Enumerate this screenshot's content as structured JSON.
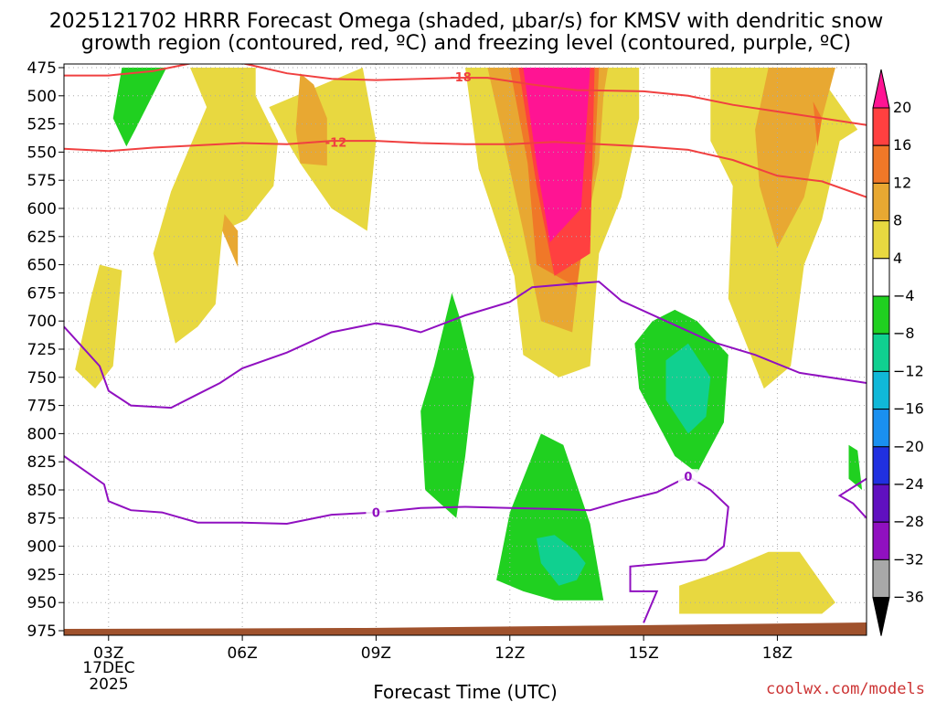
{
  "chart_data": {
    "type": "contour",
    "title_line1": "2025121702 HRRR Forecast Omega (shaded, μbar/s) for KMSV with dendritic snow",
    "title_line2": "growth region (contoured, red, ºC) and freezing level (contoured, purple, ºC)",
    "xlabel": "Forecast Time (UTC)",
    "x_ticks": [
      {
        "hour": 3,
        "label": "03Z"
      },
      {
        "hour": 6,
        "label": "06Z"
      },
      {
        "hour": 9,
        "label": "09Z"
      },
      {
        "hour": 12,
        "label": "12Z"
      },
      {
        "hour": 15,
        "label": "15Z"
      },
      {
        "hour": 18,
        "label": "18Z"
      }
    ],
    "x_range": [
      2,
      20
    ],
    "date_day": "17DEC",
    "date_year": "2025",
    "y_ticks": [
      "475",
      "500",
      "525",
      "550",
      "575",
      "600",
      "625",
      "650",
      "675",
      "700",
      "725",
      "750",
      "775",
      "800",
      "825",
      "850",
      "875",
      "900",
      "925",
      "950",
      "975"
    ],
    "y_range_hpa": [
      475,
      975
    ],
    "colorbar_levels": [
      "20",
      "16",
      "12",
      "8",
      "4",
      "−4",
      "−8",
      "−12",
      "−16",
      "−20",
      "−24",
      "−28",
      "−32",
      "−36"
    ],
    "colorbar_colors": [
      "#ff1493",
      "#ff4040",
      "#f07828",
      "#e8a832",
      "#e8d840",
      "#ffffff",
      "#20d020",
      "#10d090",
      "#10b8d8",
      "#1a90f0",
      "#2030e0",
      "#6010c0",
      "#9010c0",
      "#a8a8a8",
      "#000000"
    ],
    "shaded_regions": [
      {
        "level": "4 to 8",
        "polygons": [
          [
            [
              4.83,
              475
            ],
            [
              5.2,
              510
            ],
            [
              4.4,
              585
            ],
            [
              4.0,
              640
            ],
            [
              4.5,
              720
            ],
            [
              5.0,
              705
            ],
            [
              5.4,
              685
            ],
            [
              5.55,
              620
            ],
            [
              6.1,
              610
            ],
            [
              6.7,
              580
            ],
            [
              6.8,
              540
            ],
            [
              6.3,
              500
            ],
            [
              6.3,
              475
            ]
          ],
          [
            [
              2.25,
              743
            ],
            [
              2.6,
              680
            ],
            [
              2.8,
              650
            ],
            [
              3.3,
              655
            ],
            [
              3.1,
              740
            ],
            [
              2.7,
              760
            ]
          ],
          [
            [
              8.7,
              475
            ],
            [
              9.0,
              540
            ],
            [
              8.8,
              620
            ],
            [
              8.0,
              600
            ],
            [
              7.3,
              560
            ],
            [
              7.0,
              540
            ],
            [
              6.6,
              510
            ]
          ],
          [
            [
              11.0,
              475
            ],
            [
              11.3,
              565
            ],
            [
              12.1,
              660
            ],
            [
              12.3,
              730
            ],
            [
              13.1,
              750
            ],
            [
              13.8,
              740
            ],
            [
              14.0,
              640
            ],
            [
              14.5,
              590
            ],
            [
              14.9,
              520
            ],
            [
              14.9,
              475
            ]
          ],
          [
            [
              16.5,
              475
            ],
            [
              16.5,
              540
            ],
            [
              17.0,
              580
            ],
            [
              16.9,
              680
            ],
            [
              17.7,
              760
            ],
            [
              18.3,
              740
            ],
            [
              18.6,
              650
            ],
            [
              19.0,
              610
            ],
            [
              19.4,
              540
            ],
            [
              19.8,
              530
            ],
            [
              19.0,
              485
            ],
            [
              18.6,
              495
            ],
            [
              18.3,
              475
            ]
          ],
          [
            [
              15.8,
              935
            ],
            [
              16.9,
              920
            ],
            [
              17.8,
              905
            ],
            [
              18.5,
              905
            ],
            [
              19.3,
              950
            ],
            [
              19.0,
              960
            ],
            [
              15.8,
              960
            ]
          ]
        ]
      },
      {
        "level": "8 to 12",
        "polygons": [
          [
            [
              5.6,
              605
            ],
            [
              5.9,
              620
            ],
            [
              5.9,
              652
            ],
            [
              5.55,
              620
            ]
          ],
          [
            [
              7.3,
              480
            ],
            [
              7.6,
              490
            ],
            [
              7.9,
              520
            ],
            [
              7.9,
              562
            ],
            [
              7.3,
              560
            ],
            [
              7.2,
              530
            ]
          ],
          [
            [
              11.5,
              475
            ],
            [
              11.7,
              510
            ],
            [
              12.3,
              620
            ],
            [
              12.7,
              700
            ],
            [
              13.4,
              710
            ],
            [
              13.6,
              640
            ],
            [
              14.0,
              560
            ],
            [
              14.1,
              500
            ],
            [
              14.2,
              475
            ]
          ],
          [
            [
              17.8,
              475
            ],
            [
              17.5,
              530
            ],
            [
              17.6,
              580
            ],
            [
              18.0,
              635
            ],
            [
              18.6,
              590
            ],
            [
              19.0,
              520
            ],
            [
              19.3,
              475
            ]
          ]
        ]
      },
      {
        "level": "12 to 16",
        "polygons": [
          [
            [
              12.0,
              475
            ],
            [
              12.4,
              560
            ],
            [
              12.6,
              650
            ],
            [
              13.5,
              670
            ],
            [
              13.9,
              560
            ],
            [
              14.0,
              475
            ]
          ],
          [
            [
              18.8,
              505
            ],
            [
              18.9,
              545
            ],
            [
              19.0,
              520
            ]
          ]
        ]
      },
      {
        "level": "16 to 20",
        "polygons": [
          [
            [
              12.2,
              475
            ],
            [
              12.6,
              580
            ],
            [
              13.0,
              660
            ],
            [
              13.8,
              640
            ],
            [
              13.9,
              475
            ]
          ]
        ]
      },
      {
        "level": "above 20",
        "polygons": [
          [
            [
              12.3,
              475
            ],
            [
              12.6,
              560
            ],
            [
              12.9,
              630
            ],
            [
              13.6,
              600
            ],
            [
              13.8,
              475
            ]
          ]
        ]
      },
      {
        "level": "-8 to -4",
        "polygons": [
          [
            [
              3.3,
              475
            ],
            [
              3.1,
              520
            ],
            [
              3.4,
              545
            ],
            [
              3.6,
              530
            ],
            [
              4.3,
              475
            ]
          ],
          [
            [
              10.7,
              675
            ],
            [
              10.3,
              740
            ],
            [
              10.0,
              780
            ],
            [
              10.1,
              850
            ],
            [
              10.8,
              875
            ],
            [
              11.0,
              820
            ],
            [
              11.2,
              750
            ],
            [
              10.9,
              700
            ]
          ],
          [
            [
              12.7,
              800
            ],
            [
              12.0,
              870
            ],
            [
              11.7,
              930
            ],
            [
              12.3,
              940
            ],
            [
              13.0,
              948
            ],
            [
              14.1,
              948
            ],
            [
              13.8,
              880
            ],
            [
              13.2,
              810
            ]
          ],
          [
            [
              15.2,
              700
            ],
            [
              15.7,
              690
            ],
            [
              16.2,
              700
            ],
            [
              16.9,
              730
            ],
            [
              16.8,
              790
            ],
            [
              16.2,
              835
            ],
            [
              15.7,
              820
            ],
            [
              14.9,
              760
            ],
            [
              14.8,
              720
            ]
          ],
          [
            [
              19.6,
              810
            ],
            [
              19.8,
              815
            ],
            [
              19.9,
              850
            ],
            [
              19.6,
              840
            ]
          ]
        ]
      },
      {
        "level": "-12 to -8",
        "polygons": [
          [
            [
              15.5,
              735
            ],
            [
              16.0,
              720
            ],
            [
              16.5,
              750
            ],
            [
              16.4,
              785
            ],
            [
              16.0,
              800
            ],
            [
              15.5,
              770
            ]
          ],
          [
            [
              12.6,
              893
            ],
            [
              13.0,
              890
            ],
            [
              13.5,
              905
            ],
            [
              13.7,
              915
            ],
            [
              13.5,
              930
            ],
            [
              13.1,
              935
            ],
            [
              12.7,
              915
            ]
          ]
        ]
      }
    ],
    "dendritic_contours": [
      {
        "label": "-18",
        "points": [
          [
            2,
            482
          ],
          [
            3,
            482
          ],
          [
            4,
            478
          ],
          [
            5,
            470
          ],
          [
            6,
            471
          ],
          [
            7,
            480
          ],
          [
            8,
            485
          ],
          [
            9,
            486
          ],
          [
            10,
            485
          ],
          [
            10.8,
            484
          ],
          [
            11.5,
            484
          ],
          [
            12.5,
            490
          ],
          [
            13.5,
            495
          ],
          [
            15,
            496
          ],
          [
            16,
            500
          ],
          [
            17,
            508
          ],
          [
            18,
            514
          ],
          [
            19,
            520
          ],
          [
            20,
            526
          ]
        ]
      },
      {
        "label": "-12",
        "points": [
          [
            2,
            547
          ],
          [
            3,
            549
          ],
          [
            4,
            546
          ],
          [
            5,
            544
          ],
          [
            6,
            542
          ],
          [
            7,
            543
          ],
          [
            8,
            540
          ],
          [
            9,
            540
          ],
          [
            10,
            542
          ],
          [
            11,
            543
          ],
          [
            12,
            543
          ],
          [
            13,
            541
          ],
          [
            14,
            543
          ],
          [
            15,
            545
          ],
          [
            16,
            548
          ],
          [
            17,
            557
          ],
          [
            18,
            571
          ],
          [
            19,
            576
          ],
          [
            20,
            590
          ]
        ]
      }
    ],
    "freezing_contours": [
      {
        "label": "0",
        "points": [
          [
            2,
            705
          ],
          [
            2.8,
            740
          ],
          [
            3.0,
            762
          ],
          [
            3.5,
            775
          ],
          [
            4.4,
            777
          ],
          [
            5.0,
            765
          ],
          [
            5.5,
            755
          ],
          [
            6.0,
            742
          ],
          [
            7.0,
            728
          ],
          [
            8.0,
            710
          ],
          [
            9.0,
            702
          ],
          [
            9.5,
            705
          ],
          [
            10.0,
            710
          ],
          [
            11.0,
            695
          ],
          [
            12.0,
            683
          ],
          [
            12.5,
            670
          ],
          [
            13.4,
            667
          ],
          [
            14.0,
            665
          ],
          [
            14.5,
            682
          ],
          [
            15.5,
            700
          ],
          [
            16.5,
            718
          ],
          [
            17.5,
            730
          ],
          [
            18.5,
            746
          ],
          [
            19.5,
            752
          ],
          [
            20,
            755
          ]
        ]
      },
      {
        "label": "0",
        "points": [
          [
            2,
            820
          ],
          [
            2.9,
            845
          ],
          [
            3.0,
            860
          ],
          [
            3.5,
            868
          ],
          [
            4.2,
            870
          ],
          [
            5.0,
            879
          ],
          [
            6.0,
            879
          ],
          [
            7.0,
            880
          ],
          [
            8.0,
            872
          ],
          [
            9.0,
            870
          ],
          [
            10.0,
            866
          ],
          [
            11.0,
            865
          ],
          [
            12.0,
            866
          ],
          [
            13.0,
            867
          ],
          [
            13.8,
            868
          ],
          [
            14.5,
            860
          ],
          [
            15.3,
            852
          ],
          [
            16.0,
            838
          ],
          [
            16.5,
            850
          ],
          [
            16.9,
            865
          ],
          [
            16.8,
            900
          ],
          [
            16.4,
            912
          ],
          [
            14.7,
            918
          ],
          [
            14.7,
            940
          ],
          [
            15.3,
            940
          ],
          [
            15.0,
            968
          ]
        ]
      },
      {
        "label": "",
        "points": [
          [
            20,
            840
          ],
          [
            19.4,
            855
          ],
          [
            19.7,
            862
          ],
          [
            20,
            875
          ]
        ]
      }
    ],
    "contour_label_positions": [
      {
        "label": "-18",
        "hour": 10.9,
        "hpa": 483
      },
      {
        "label": "-12",
        "hour": 8.1,
        "hpa": 541
      },
      {
        "label": "0",
        "hour": 9.0,
        "hpa": 870
      },
      {
        "label": "0",
        "hour": 16.0,
        "hpa": 838
      }
    ],
    "terrain_color": "#a0522d"
  },
  "footer": {
    "credit": "coolwx.com/models"
  }
}
